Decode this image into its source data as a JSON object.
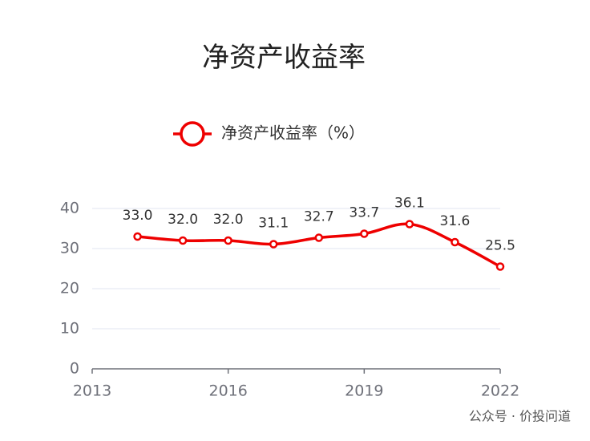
{
  "chart_data": {
    "type": "line",
    "title": "净资产收益率",
    "x": [
      2014,
      2015,
      2016,
      2017,
      2018,
      2019,
      2020,
      2021,
      2022
    ],
    "series": [
      {
        "name": "净资产收益率（%）",
        "color": "#ee0000",
        "values": [
          33.0,
          32.0,
          32.0,
          31.1,
          32.7,
          33.7,
          36.1,
          31.6,
          25.5
        ],
        "value_labels": [
          "33.0",
          "32.0",
          "32.0",
          "31.1",
          "32.7",
          "33.7",
          "36.1",
          "31.6",
          "25.5"
        ]
      }
    ],
    "xlim": [
      2013,
      2022
    ],
    "xticks": [
      2013,
      2016,
      2019,
      2022
    ],
    "ylim": [
      0,
      40
    ],
    "yticks": [
      0,
      10,
      20,
      30,
      40
    ],
    "grid": true,
    "legend": "top",
    "watermark": "公众号 · 价投问道"
  }
}
